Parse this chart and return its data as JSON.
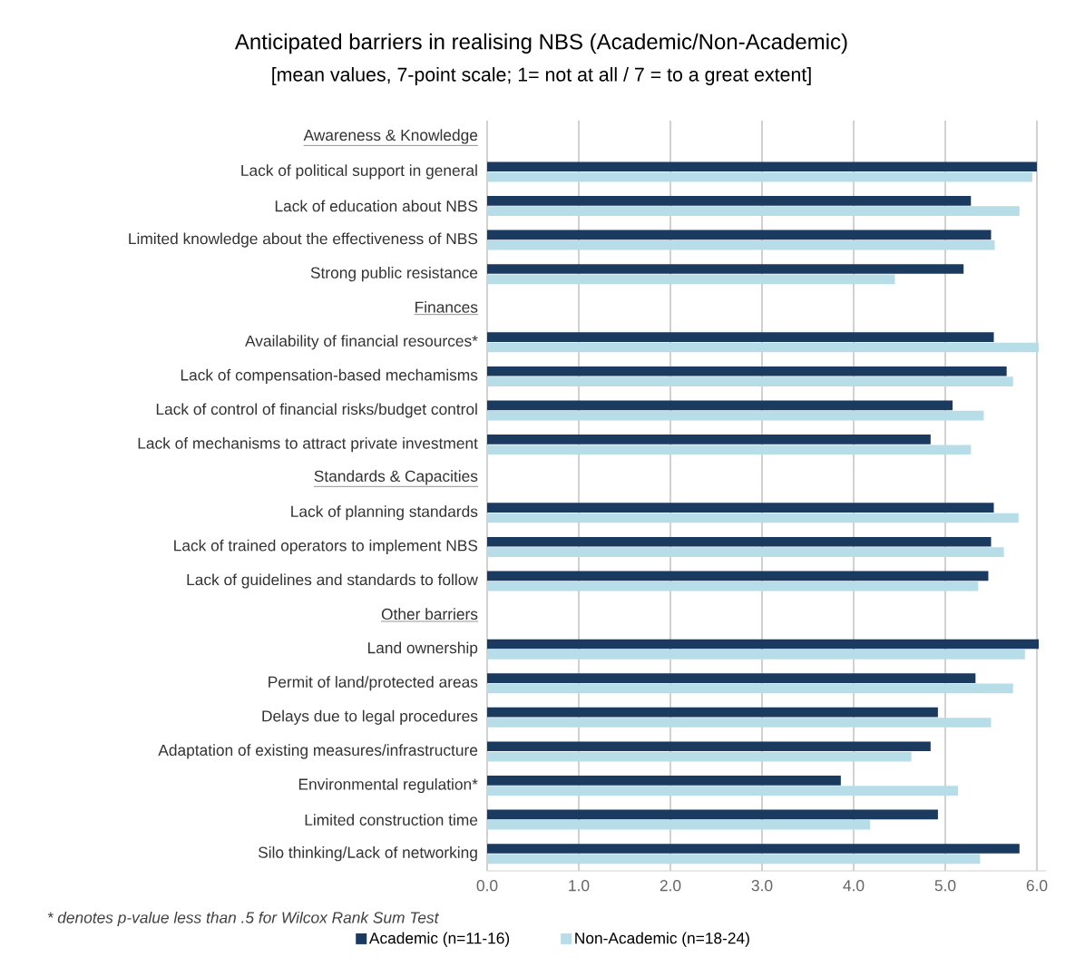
{
  "chart_data": {
    "type": "bar",
    "orientation": "horizontal",
    "title": "Anticipated barriers in realising NBS (Academic/Non-Academic)",
    "subtitle": "[mean values, 7-point scale; 1= not at all / 7 = to a great extent]",
    "categories": [
      "Awareness & Knowledge",
      "Lack of political support in general",
      "Lack of education about NBS",
      "Limited knowledge about the effectiveness of NBS",
      "Strong public resistance",
      "Finances",
      "Availability of financial resources*",
      "Lack of compensation-based mechamisms",
      "Lack of control of financial risks/budget control",
      "Lack of mechanisms to attract private investment",
      "Standards & Capacities",
      "Lack of planning standards",
      "Lack of trained operators to implement NBS",
      "Lack of guidelines and standards to follow",
      "Other barriers",
      "Land ownership",
      "Permit of land/protected areas",
      "Delays due to legal procedures",
      "Adaptation of existing measures/infrastructure",
      "Environmental regulation*",
      "Limited construction time",
      "Silo thinking/Lack of networking"
    ],
    "series": [
      {
        "name": "Academic (n=11-16)",
        "color": "#1b3a60",
        "values": [
          null,
          6.0,
          5.28,
          5.5,
          5.2,
          null,
          5.53,
          5.67,
          5.08,
          4.84,
          null,
          5.53,
          5.5,
          5.47,
          null,
          6.02,
          5.33,
          4.92,
          4.84,
          3.86,
          4.92,
          5.81
        ]
      },
      {
        "name": "Non-Academic (n=18-24)",
        "color": "#b7dde8",
        "values": [
          null,
          5.95,
          5.81,
          5.54,
          4.45,
          null,
          6.02,
          5.74,
          5.42,
          5.28,
          null,
          5.8,
          5.64,
          5.36,
          null,
          5.87,
          5.74,
          5.5,
          4.63,
          5.14,
          4.18,
          5.38
        ]
      }
    ],
    "xlim": [
      0,
      6.1
    ],
    "xticks": [
      {
        "value": 0,
        "label": "0.0"
      },
      {
        "value": 1,
        "label": "1.0"
      },
      {
        "value": 2,
        "label": "2.0"
      },
      {
        "value": 3,
        "label": "3.0"
      },
      {
        "value": 4,
        "label": "4.0"
      },
      {
        "value": 5,
        "label": "5.0"
      },
      {
        "value": 6,
        "label": "6.0"
      }
    ],
    "grid": "x",
    "legend": "bottom",
    "annotations": [
      "* denotes p-value less than .5 for Wilcox Rank Sum Test"
    ]
  }
}
